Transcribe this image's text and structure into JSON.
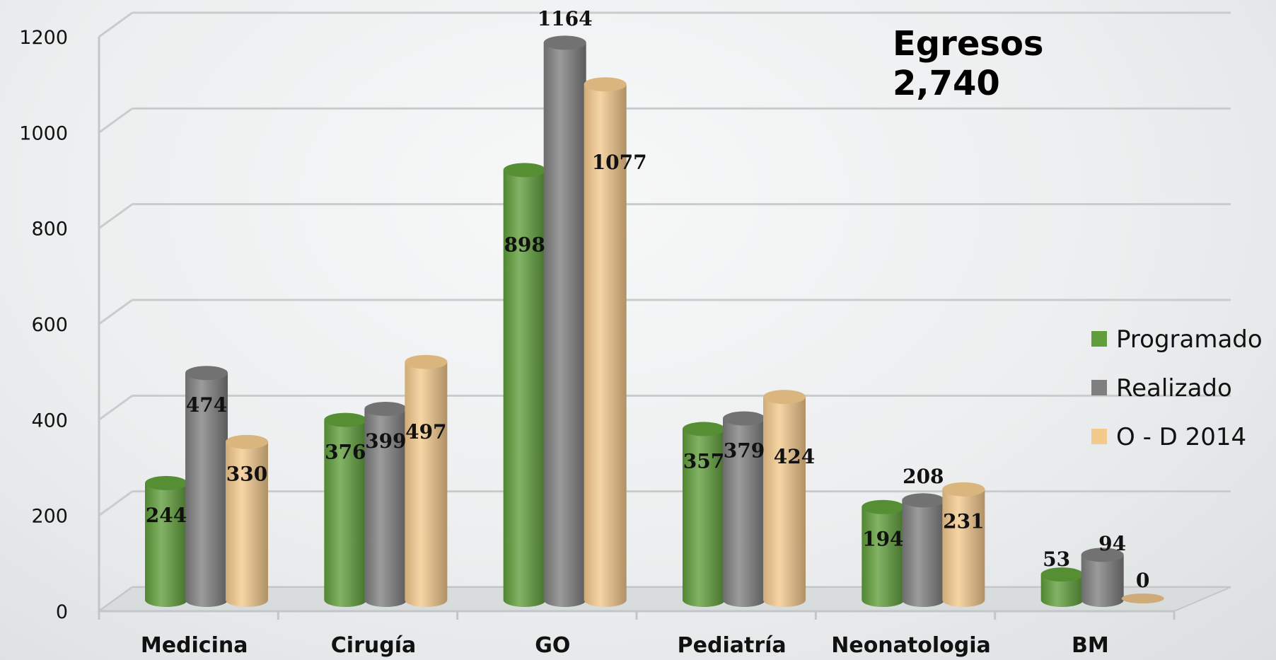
{
  "chart_data": {
    "type": "bar",
    "title_lines": [
      "Egresos",
      "2,740"
    ],
    "categories": [
      "Medicina",
      "Cirugía",
      "GO",
      "Pediatría",
      "Neonatologia",
      "BM"
    ],
    "series": [
      {
        "name": "Programado",
        "color": "#5f9e3a",
        "values": [
          244,
          376,
          898,
          357,
          194,
          53
        ]
      },
      {
        "name": "Realizado",
        "color": "#7f7f80",
        "values": [
          474,
          399,
          1164,
          379,
          208,
          94
        ]
      },
      {
        "name": "O - D 2014",
        "color": "#f3c98c",
        "values": [
          330,
          497,
          1077,
          424,
          231,
          0
        ]
      }
    ],
    "data_labels": [
      [
        "244",
        "474",
        "330"
      ],
      [
        "376",
        "399",
        "497"
      ],
      [
        "898",
        "1164",
        "1077"
      ],
      [
        "357",
        "379",
        "424"
      ],
      [
        "194",
        "208",
        "231"
      ],
      [
        "53",
        "94",
        "0"
      ]
    ],
    "yticks": [
      "0",
      "200",
      "400",
      "600",
      "800",
      "1000",
      "1200"
    ],
    "ylim": [
      0,
      1200
    ],
    "grid": true,
    "legend_position": "right"
  }
}
